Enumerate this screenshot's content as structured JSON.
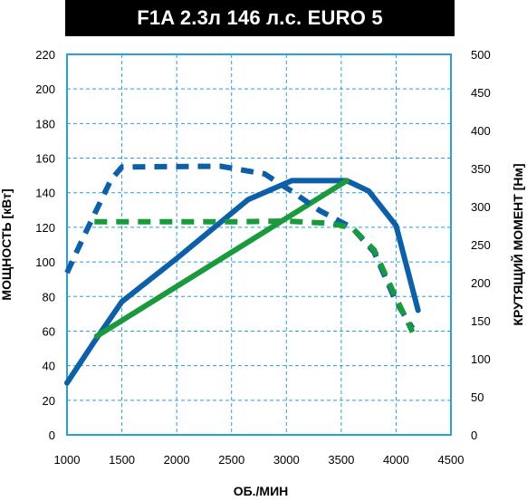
{
  "chart_data": {
    "type": "line",
    "title": "F1A 2.3л 146 л.с. EURO 5",
    "xlabel": "ОБ./МИН",
    "ylabel_left": "МОЩНОСТЬ [кВт]",
    "ylabel_right": "КРУТЯЩИЙ МОМЕНТ [Нм]",
    "xlim": [
      1000,
      4500
    ],
    "ylim_left": [
      0,
      220
    ],
    "ylim_right": [
      0,
      500
    ],
    "x_ticks": [
      "1000",
      "1500",
      "2000",
      "2500",
      "3000",
      "3500",
      "4000",
      "4500"
    ],
    "y_left_ticks": [
      "0",
      "20",
      "40",
      "60",
      "80",
      "100",
      "120",
      "140",
      "160",
      "180",
      "200",
      "220"
    ],
    "y_right_ticks": [
      "0",
      "50",
      "100",
      "150",
      "200",
      "250",
      "300",
      "350",
      "400",
      "450",
      "500"
    ],
    "grid": true,
    "colors": {
      "blue": "#0d5fa8",
      "green": "#1a9a3c",
      "plot_border": "#2b9fd8",
      "grid": "#2b9fd8"
    },
    "series": [
      {
        "axis": "left",
        "style": "solid",
        "color": "#0d5fa8",
        "x": [
          1000,
          1250,
          1500,
          2000,
          2650,
          3050,
          3300,
          3550,
          3750,
          4000,
          4200
        ],
        "y": [
          30,
          54,
          77,
          102,
          136,
          147,
          147,
          147,
          141,
          121,
          72
        ]
      },
      {
        "axis": "left",
        "style": "solid",
        "color": "#1a9a3c",
        "x": [
          1270,
          3550
        ],
        "y": [
          57,
          147
        ]
      },
      {
        "axis": "right",
        "style": "dashed",
        "color": "#0d5fa8",
        "x": [
          1000,
          1150,
          1250,
          1400,
          1500,
          2400,
          2800,
          3050,
          3300,
          3600,
          3800,
          4000,
          4150
        ],
        "y": [
          213,
          260,
          290,
          335,
          352,
          353,
          343,
          320,
          295,
          272,
          240,
          175,
          140
        ]
      },
      {
        "axis": "right",
        "style": "dashed",
        "color": "#1a9a3c",
        "x": [
          1250,
          1500,
          2000,
          2500,
          3000,
          3400,
          3600,
          3800,
          4000,
          4150
        ],
        "y": [
          280,
          280,
          280,
          280,
          281,
          278,
          272,
          243,
          180,
          135
        ]
      }
    ]
  }
}
